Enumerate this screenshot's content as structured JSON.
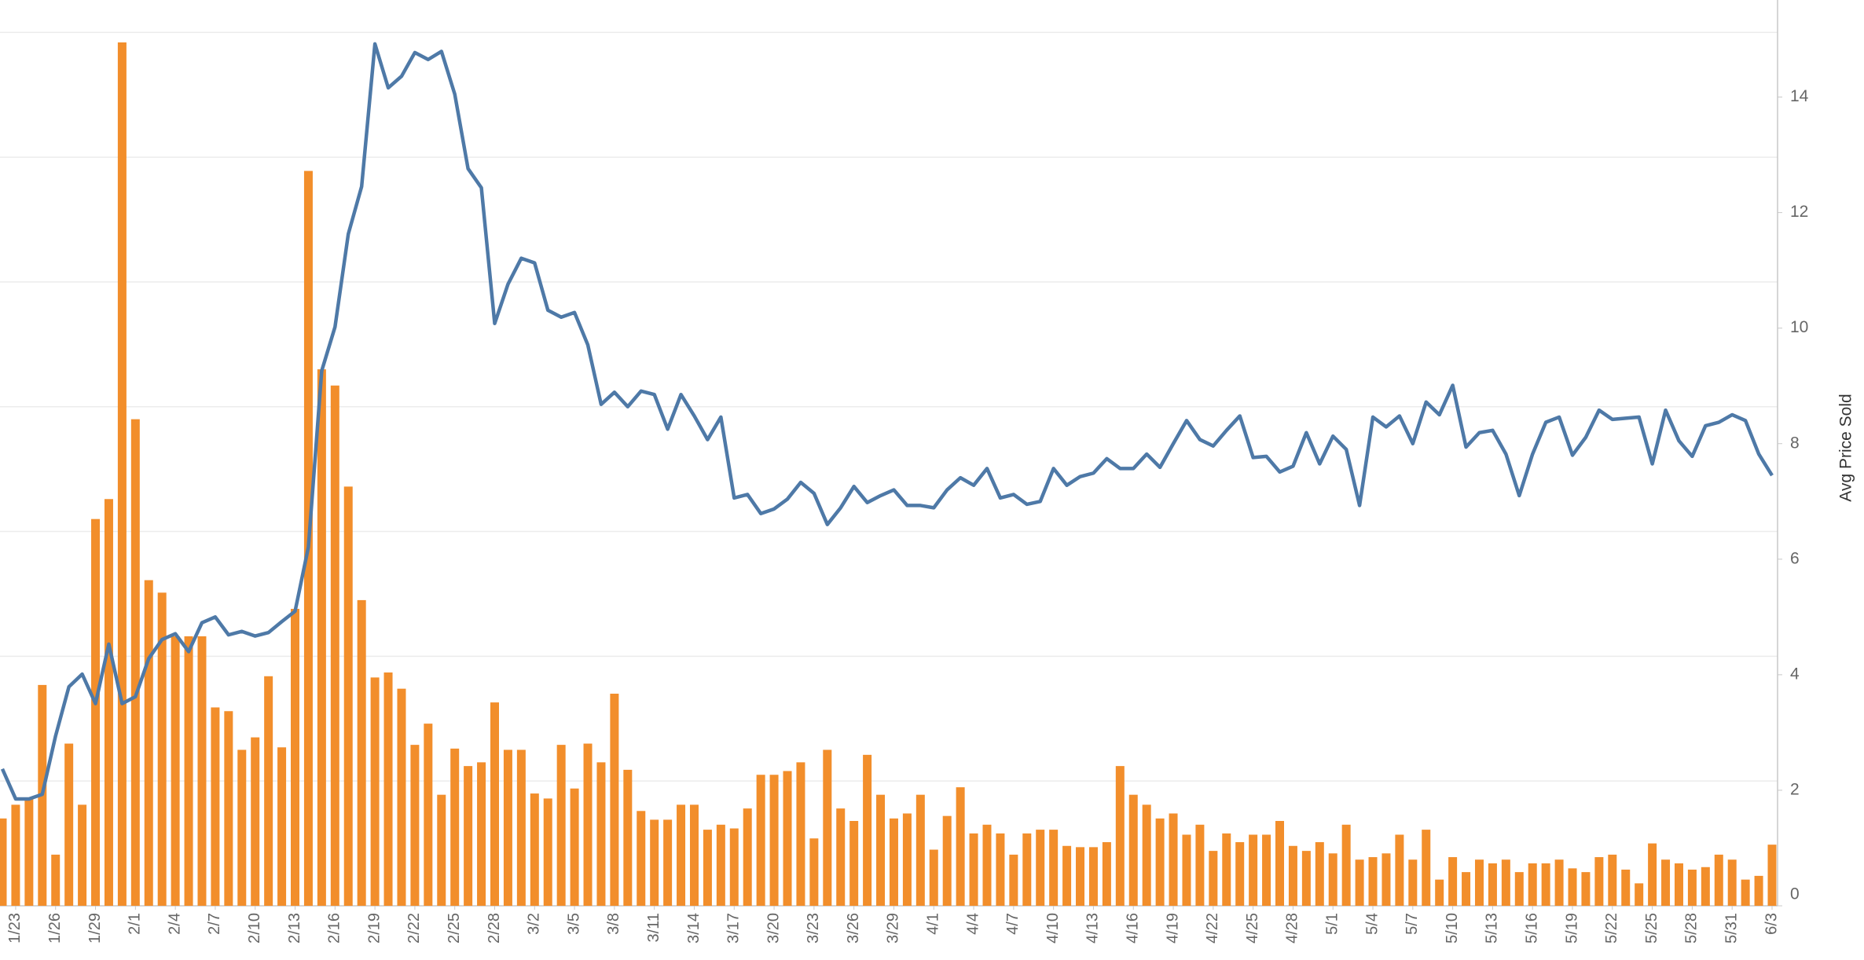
{
  "chart_data": {
    "type": "combo",
    "y2label": "Avg Price Sold",
    "categories": [
      null,
      "1/23",
      null,
      null,
      "1/26",
      null,
      null,
      "1/29",
      null,
      null,
      "2/1",
      null,
      null,
      "2/4",
      null,
      null,
      "2/7",
      null,
      null,
      "2/10",
      null,
      null,
      "2/13",
      null,
      null,
      "2/16",
      null,
      null,
      "2/19",
      null,
      null,
      "2/22",
      null,
      null,
      "2/25",
      null,
      null,
      "2/28",
      null,
      null,
      "3/2",
      null,
      null,
      "3/5",
      null,
      null,
      "3/8",
      null,
      null,
      "3/11",
      null,
      null,
      "3/14",
      null,
      null,
      "3/17",
      null,
      null,
      "3/20",
      null,
      null,
      "3/23",
      null,
      null,
      "3/26",
      null,
      null,
      "3/29",
      null,
      null,
      "4/1",
      null,
      null,
      "4/4",
      null,
      null,
      "4/7",
      null,
      null,
      "4/10",
      null,
      null,
      "4/13",
      null,
      null,
      "4/16",
      null,
      null,
      "4/19",
      null,
      null,
      "4/22",
      null,
      null,
      "4/25",
      null,
      null,
      "4/28",
      null,
      null,
      "5/1",
      null,
      null,
      "5/4",
      null,
      null,
      "5/7",
      null,
      null,
      "5/10",
      null,
      null,
      "5/13",
      null,
      null,
      "5/16",
      null,
      null,
      "5/19",
      null,
      null,
      "5/22",
      null,
      null,
      "5/25",
      null,
      null,
      "5/28",
      null,
      null,
      "5/31",
      null,
      null,
      "6/3"
    ],
    "series": [
      {
        "type": "bar",
        "color": "#f28e2b",
        "values": [
          0.7,
          0.81,
          0.86,
          1.77,
          0.41,
          1.3,
          0.81,
          3.1,
          3.26,
          6.92,
          3.9,
          2.61,
          2.51,
          2.16,
          2.16,
          2.16,
          1.59,
          1.56,
          1.25,
          1.35,
          1.84,
          1.27,
          2.38,
          5.89,
          4.3,
          4.17,
          3.36,
          2.45,
          1.83,
          1.87,
          1.74,
          1.29,
          1.46,
          0.89,
          1.26,
          1.12,
          1.15,
          1.63,
          1.25,
          1.25,
          0.9,
          0.86,
          1.29,
          0.94,
          1.3,
          1.15,
          1.7,
          1.09,
          0.76,
          0.69,
          0.69,
          0.81,
          0.81,
          0.61,
          0.65,
          0.62,
          0.78,
          1.05,
          1.05,
          1.08,
          1.15,
          0.54,
          1.25,
          0.78,
          0.68,
          1.21,
          0.89,
          0.7,
          0.74,
          0.89,
          0.45,
          0.72,
          0.95,
          0.58,
          0.65,
          0.58,
          0.41,
          0.58,
          0.61,
          0.61,
          0.48,
          0.47,
          0.47,
          0.51,
          1.12,
          0.89,
          0.81,
          0.7,
          0.74,
          0.57,
          0.65,
          0.44,
          0.58,
          0.51,
          0.57,
          0.57,
          0.68,
          0.48,
          0.44,
          0.51,
          0.42,
          0.65,
          0.37,
          0.39,
          0.42,
          0.57,
          0.37,
          0.61,
          0.21,
          0.39,
          0.27,
          0.37,
          0.34,
          0.37,
          0.27,
          0.34,
          0.34,
          0.37,
          0.3,
          0.27,
          0.39,
          0.41,
          0.29,
          0.18,
          0.5,
          0.37,
          0.34,
          0.29,
          0.31,
          0.41,
          0.37,
          0.21,
          0.24,
          0.49
        ]
      },
      {
        "type": "line",
        "axis": "y2",
        "color": "#4e79a7",
        "values": [
          2.37,
          1.85,
          1.85,
          1.93,
          2.94,
          3.79,
          4.01,
          3.5,
          4.53,
          3.5,
          3.62,
          4.28,
          4.61,
          4.71,
          4.4,
          4.9,
          5.0,
          4.69,
          4.75,
          4.67,
          4.73,
          4.92,
          5.1,
          6.21,
          9.26,
          10.02,
          11.63,
          12.45,
          14.92,
          14.16,
          14.36,
          14.77,
          14.65,
          14.79,
          14.05,
          12.76,
          12.43,
          10.08,
          10.76,
          11.21,
          11.13,
          10.31,
          10.19,
          10.27,
          9.71,
          8.68,
          8.89,
          8.64,
          8.91,
          8.85,
          8.25,
          8.85,
          8.48,
          8.07,
          8.46,
          7.06,
          7.12,
          6.79,
          6.87,
          7.04,
          7.33,
          7.14,
          6.6,
          6.89,
          7.26,
          6.98,
          7.1,
          7.2,
          6.93,
          6.93,
          6.89,
          7.2,
          7.41,
          7.28,
          7.57,
          7.06,
          7.12,
          6.95,
          7.0,
          7.57,
          7.28,
          7.43,
          7.49,
          7.74,
          7.57,
          7.57,
          7.82,
          7.59,
          8.0,
          8.4,
          8.07,
          7.96,
          8.23,
          8.48,
          7.76,
          7.78,
          7.51,
          7.61,
          8.19,
          7.65,
          8.13,
          7.9,
          6.93,
          8.46,
          8.29,
          8.48,
          8.0,
          8.72,
          8.5,
          9.01,
          7.94,
          8.19,
          8.23,
          7.82,
          7.1,
          7.82,
          8.37,
          8.46,
          7.8,
          8.11,
          8.58,
          8.42,
          8.44,
          8.46,
          7.65,
          8.58,
          8.05,
          7.78,
          8.31,
          8.37,
          8.5,
          8.4,
          7.82,
          7.45
        ]
      }
    ],
    "ylim": [
      0,
      7.26
    ],
    "yticks": [
      0,
      1,
      2,
      3,
      4,
      5,
      6,
      7
    ],
    "ytick_labels": false,
    "y2lim": [
      0,
      15.68
    ],
    "y2ticks": [
      0,
      2,
      4,
      6,
      8,
      10,
      12,
      14
    ],
    "grid": true
  }
}
